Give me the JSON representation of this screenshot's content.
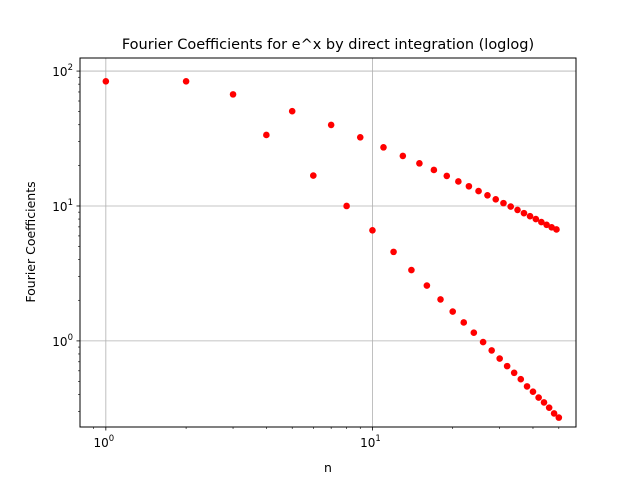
{
  "chart_data": {
    "type": "scatter",
    "title": "Fourier Coefficients for e^x by direct integration (loglog)",
    "xlabel": "n",
    "ylabel": "Fourier Coefficients",
    "xscale": "log",
    "yscale": "log",
    "xlim": [
      0.8,
      58
    ],
    "ylim": [
      0.23,
      125
    ],
    "grid": true,
    "x_ticks": [
      {
        "base": "10",
        "exp": "0",
        "value": 1
      },
      {
        "base": "10",
        "exp": "1",
        "value": 10
      }
    ],
    "y_ticks": [
      {
        "base": "10",
        "exp": "0",
        "value": 1
      },
      {
        "base": "10",
        "exp": "1",
        "value": 10
      },
      {
        "base": "10",
        "exp": "2",
        "value": 100
      }
    ],
    "marker_color": "#ff0000",
    "series": [
      {
        "x": [
          1,
          2,
          3,
          4,
          5,
          6,
          7,
          8,
          9,
          10,
          11,
          12,
          13,
          14,
          15,
          16,
          17,
          18,
          19,
          20,
          21,
          22,
          23,
          24,
          25,
          26,
          27,
          28,
          29,
          30,
          31,
          32,
          33,
          34,
          35,
          36,
          37,
          38,
          39,
          40,
          41,
          42,
          43,
          44,
          45,
          46,
          47,
          48,
          49,
          50
        ],
        "y": [
          84.0,
          84.0,
          67.2,
          33.6,
          50.4,
          16.8,
          39.9,
          10.0,
          32.3,
          6.6,
          27.2,
          4.57,
          23.5,
          3.35,
          20.7,
          2.57,
          18.5,
          2.03,
          16.7,
          1.65,
          15.2,
          1.37,
          14.0,
          1.15,
          12.9,
          0.98,
          12.0,
          0.85,
          11.2,
          0.74,
          10.5,
          0.65,
          9.9,
          0.58,
          9.35,
          0.52,
          8.85,
          0.46,
          8.4,
          0.42,
          8.0,
          0.38,
          7.6,
          0.35,
          7.25,
          0.32,
          6.95,
          0.29,
          6.7,
          0.27
        ]
      }
    ]
  }
}
